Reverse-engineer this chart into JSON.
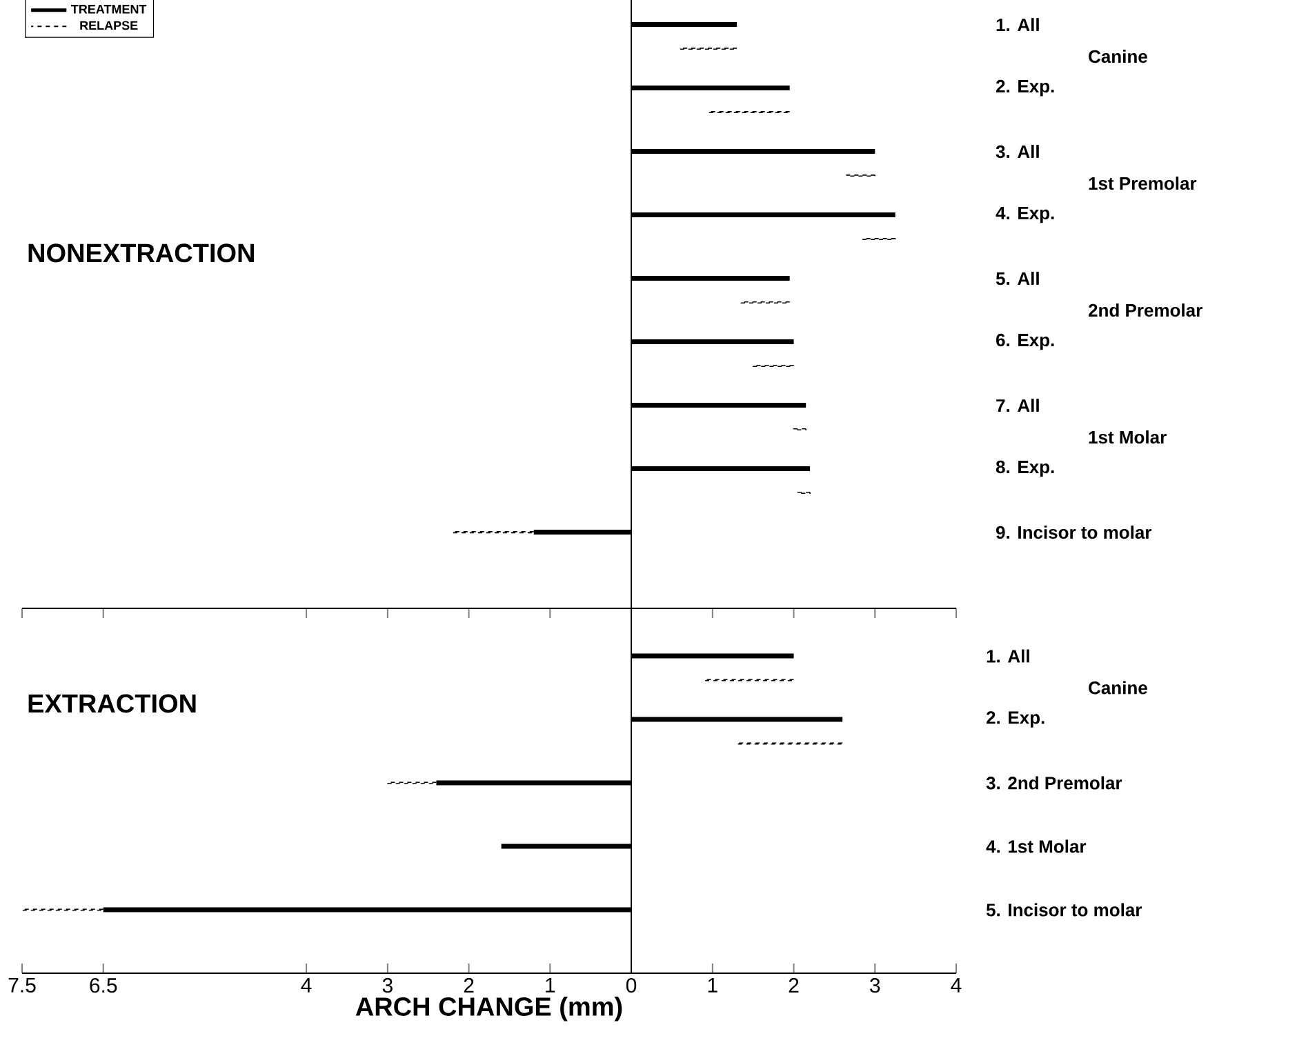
{
  "chart_data": [
    {
      "type": "bar",
      "orientation": "horizontal",
      "title": "NONEXTRACTION",
      "legend": "top left",
      "tick_labels": "y",
      "categories": [
        "1. All",
        "2. Exp.",
        "3. All",
        "4. Exp.",
        "5. All",
        "6. Exp.",
        "7. All",
        "8. Exp.",
        "9. Incisor to molar"
      ],
      "annotations": [
        "Canine",
        "1st Premolar",
        "2nd Premolar",
        "1st Molar"
      ],
      "series": [
        {
          "name": "TREATMENT",
          "color": "#000000",
          "values": [
            1.3,
            1.95,
            3.0,
            3.25,
            1.95,
            2.0,
            2.15,
            2.2,
            -1.2
          ]
        },
        {
          "name": "RELAPSE",
          "color": "#000000",
          "line_style": "dashed",
          "base": [
            1.3,
            1.95,
            3.0,
            3.25,
            1.95,
            2.0,
            2.15,
            2.2,
            -1.2
          ],
          "values": [
            -0.7,
            -1.0,
            -0.35,
            -0.4,
            -0.6,
            -0.5,
            -0.15,
            -0.15,
            -1.0
          ]
        }
      ],
      "ref_lines": [
        {
          "axis": "x",
          "value": 0
        }
      ],
      "xlim": [
        -7.5,
        4
      ],
      "xticks": [
        {
          "value": -7.5,
          "label": null
        },
        {
          "value": -6.5,
          "label": null
        },
        {
          "value": -4,
          "label": null
        },
        {
          "value": -3,
          "label": null
        },
        {
          "value": -2,
          "label": null
        },
        {
          "value": -1,
          "label": null
        },
        {
          "value": 0,
          "label": null
        },
        {
          "value": 1,
          "label": null
        },
        {
          "value": 2,
          "label": null
        },
        {
          "value": 3,
          "label": null
        },
        {
          "value": 4,
          "label": null
        }
      ]
    },
    {
      "type": "bar",
      "orientation": "horizontal",
      "title": "EXTRACTION",
      "xlabel": "ARCH CHANGE (mm)",
      "categories": [
        "1. All",
        "2. Exp.",
        "3. 2nd Premolar",
        "4. 1st Molar",
        "5. Incisor to molar"
      ],
      "annotations": [
        "Canine"
      ],
      "series": [
        {
          "color": "#000000",
          "values": [
            2.0,
            2.6,
            -2.4,
            -1.6,
            -6.5
          ]
        },
        {
          "color": "#000000",
          "line_style": "dashed",
          "base": [
            2.0,
            2.6,
            -2.4,
            null,
            -6.5
          ],
          "values": [
            -1.1,
            -1.3,
            -0.6,
            null,
            -1.0
          ]
        }
      ],
      "ref_lines": [
        {
          "axis": "x",
          "value": 0
        }
      ],
      "xlim": [
        -7.5,
        4
      ],
      "xticks": [
        {
          "value": -7.5,
          "label": "7.5"
        },
        {
          "value": -6.5,
          "label": "6.5"
        },
        {
          "value": -4,
          "label": "4"
        },
        {
          "value": -3,
          "label": "3"
        },
        {
          "value": -2,
          "label": "2"
        },
        {
          "value": -1,
          "label": "1"
        },
        0,
        1,
        2,
        3,
        4
      ]
    }
  ]
}
